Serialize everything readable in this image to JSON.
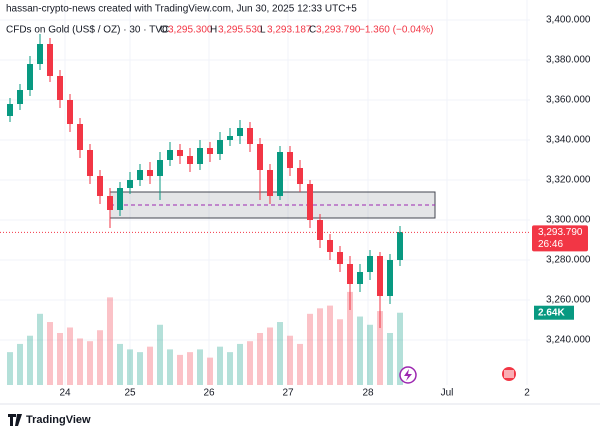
{
  "header": {
    "credit": "hassan-crypto-news created with TradingView.com, Jun 30, 2025 12:33 UTC+5",
    "symbol": "CFDs on Gold (US$ / OZ) · 30 · TVC",
    "open_label": "O",
    "open": "3,295.300",
    "high_label": "H",
    "high": "3,295.530",
    "low_label": "L",
    "low": "3,293.187",
    "close_label": "C",
    "close": "3,293.790",
    "change": "−1.360 (−0.04%)"
  },
  "footer": {
    "brand": "TradingView"
  },
  "chart_data": {
    "type": "candlestick",
    "up_color": "#089981",
    "down_color": "#f23645",
    "x": [
      2,
      4,
      6,
      8,
      10,
      12,
      14,
      16,
      18,
      20,
      22,
      24,
      26,
      28,
      30,
      32,
      34,
      36,
      38,
      40,
      42,
      44,
      46,
      48,
      50,
      52,
      54,
      56,
      58,
      60,
      62,
      64,
      66,
      68,
      70,
      72,
      74,
      76,
      78,
      80
    ],
    "open": [
      3352,
      3358,
      3365,
      3378,
      3388,
      3372,
      3360,
      3348,
      3335,
      3322,
      3312,
      3305,
      3316,
      3320,
      3325,
      3322,
      3330,
      3335,
      3332,
      3328,
      3336,
      3333,
      3340,
      3342,
      3346,
      3338,
      3325,
      3312,
      3334,
      3326,
      3318,
      3300,
      3290,
      3284,
      3278,
      3268,
      3274,
      3282,
      3262,
      3280
    ],
    "high": [
      3361,
      3368,
      3382,
      3393,
      3391,
      3375,
      3363,
      3351,
      3338,
      3325,
      3316,
      3319,
      3324,
      3328,
      3329,
      3334,
      3339,
      3338,
      3336,
      3340,
      3339,
      3344,
      3346,
      3350,
      3349,
      3341,
      3328,
      3337,
      3337,
      3330,
      3320,
      3303,
      3293,
      3287,
      3282,
      3278,
      3285,
      3284,
      3283,
      3297
    ],
    "low": [
      3349,
      3355,
      3362,
      3375,
      3369,
      3356,
      3344,
      3331,
      3318,
      3308,
      3296,
      3302,
      3313,
      3317,
      3318,
      3310,
      3327,
      3328,
      3324,
      3325,
      3329,
      3330,
      3337,
      3338,
      3334,
      3310,
      3308,
      3310,
      3322,
      3314,
      3296,
      3286,
      3280,
      3274,
      3255,
      3264,
      3270,
      3246,
      3258,
      3277
    ],
    "close": [
      3358,
      3365,
      3378,
      3388,
      3372,
      3360,
      3348,
      3335,
      3322,
      3312,
      3305,
      3316,
      3320,
      3325,
      3322,
      3330,
      3335,
      3332,
      3328,
      3336,
      3333,
      3340,
      3342,
      3346,
      3338,
      3325,
      3312,
      3334,
      3326,
      3318,
      3300,
      3290,
      3284,
      3278,
      3268,
      3274,
      3282,
      3262,
      3280,
      3294
    ],
    "volume": [
      1200,
      1500,
      1800,
      2600,
      2300,
      1900,
      2100,
      1700,
      1600,
      2000,
      3200,
      1500,
      1300,
      1200,
      1400,
      2200,
      1300,
      1100,
      1200,
      1300,
      1000,
      1400,
      1200,
      1500,
      1600,
      1900,
      2100,
      2300,
      1800,
      1500,
      2600,
      2800,
      2900,
      2400,
      3400,
      2500,
      2200,
      2700,
      1900,
      2640
    ],
    "volume_value_labels": [
      null,
      null,
      null,
      null,
      null,
      null,
      null,
      null,
      null,
      null,
      null,
      null,
      null,
      null,
      null,
      null,
      null,
      null,
      null,
      null,
      null,
      null,
      null,
      null,
      null,
      null,
      null,
      null,
      null,
      null,
      null,
      null,
      null,
      null,
      null,
      null,
      null,
      null,
      null,
      "2.64K"
    ],
    "vlim": [
      0,
      4200
    ],
    "xlim": [
      0,
      106
    ],
    "xticks": [
      {
        "value": 13,
        "label": "24"
      },
      {
        "value": 26,
        "label": "25"
      },
      {
        "value": 41.8,
        "label": "26"
      },
      {
        "value": 57.6,
        "label": "27"
      },
      {
        "value": 73.6,
        "label": "28"
      },
      {
        "value": 89.4,
        "label": "Jul"
      },
      {
        "value": 105.4,
        "label": "2"
      }
    ],
    "ylim": [
      3217.5,
      3410
    ],
    "yticks": [
      {
        "value": 3240,
        "label": "3,240.000"
      },
      {
        "value": 3260,
        "label": "3,260.000"
      },
      {
        "value": 3280,
        "label": "3,280.000"
      },
      {
        "value": 3300,
        "label": "3,300.000"
      },
      {
        "value": 3320,
        "label": "3,320.000"
      },
      {
        "value": 3340,
        "label": "3,340.000"
      },
      {
        "value": 3360,
        "label": "3,360.000"
      },
      {
        "value": 3380,
        "label": "3,380.000"
      },
      {
        "value": 3400,
        "label": "3,400.000"
      }
    ],
    "grid": true,
    "last_price": {
      "value": 3293.79,
      "label": "3,293.790"
    },
    "countdown": "26:46",
    "zone": {
      "x0": 22,
      "x1": 87,
      "y0": 3301,
      "y1": 3314
    }
  }
}
